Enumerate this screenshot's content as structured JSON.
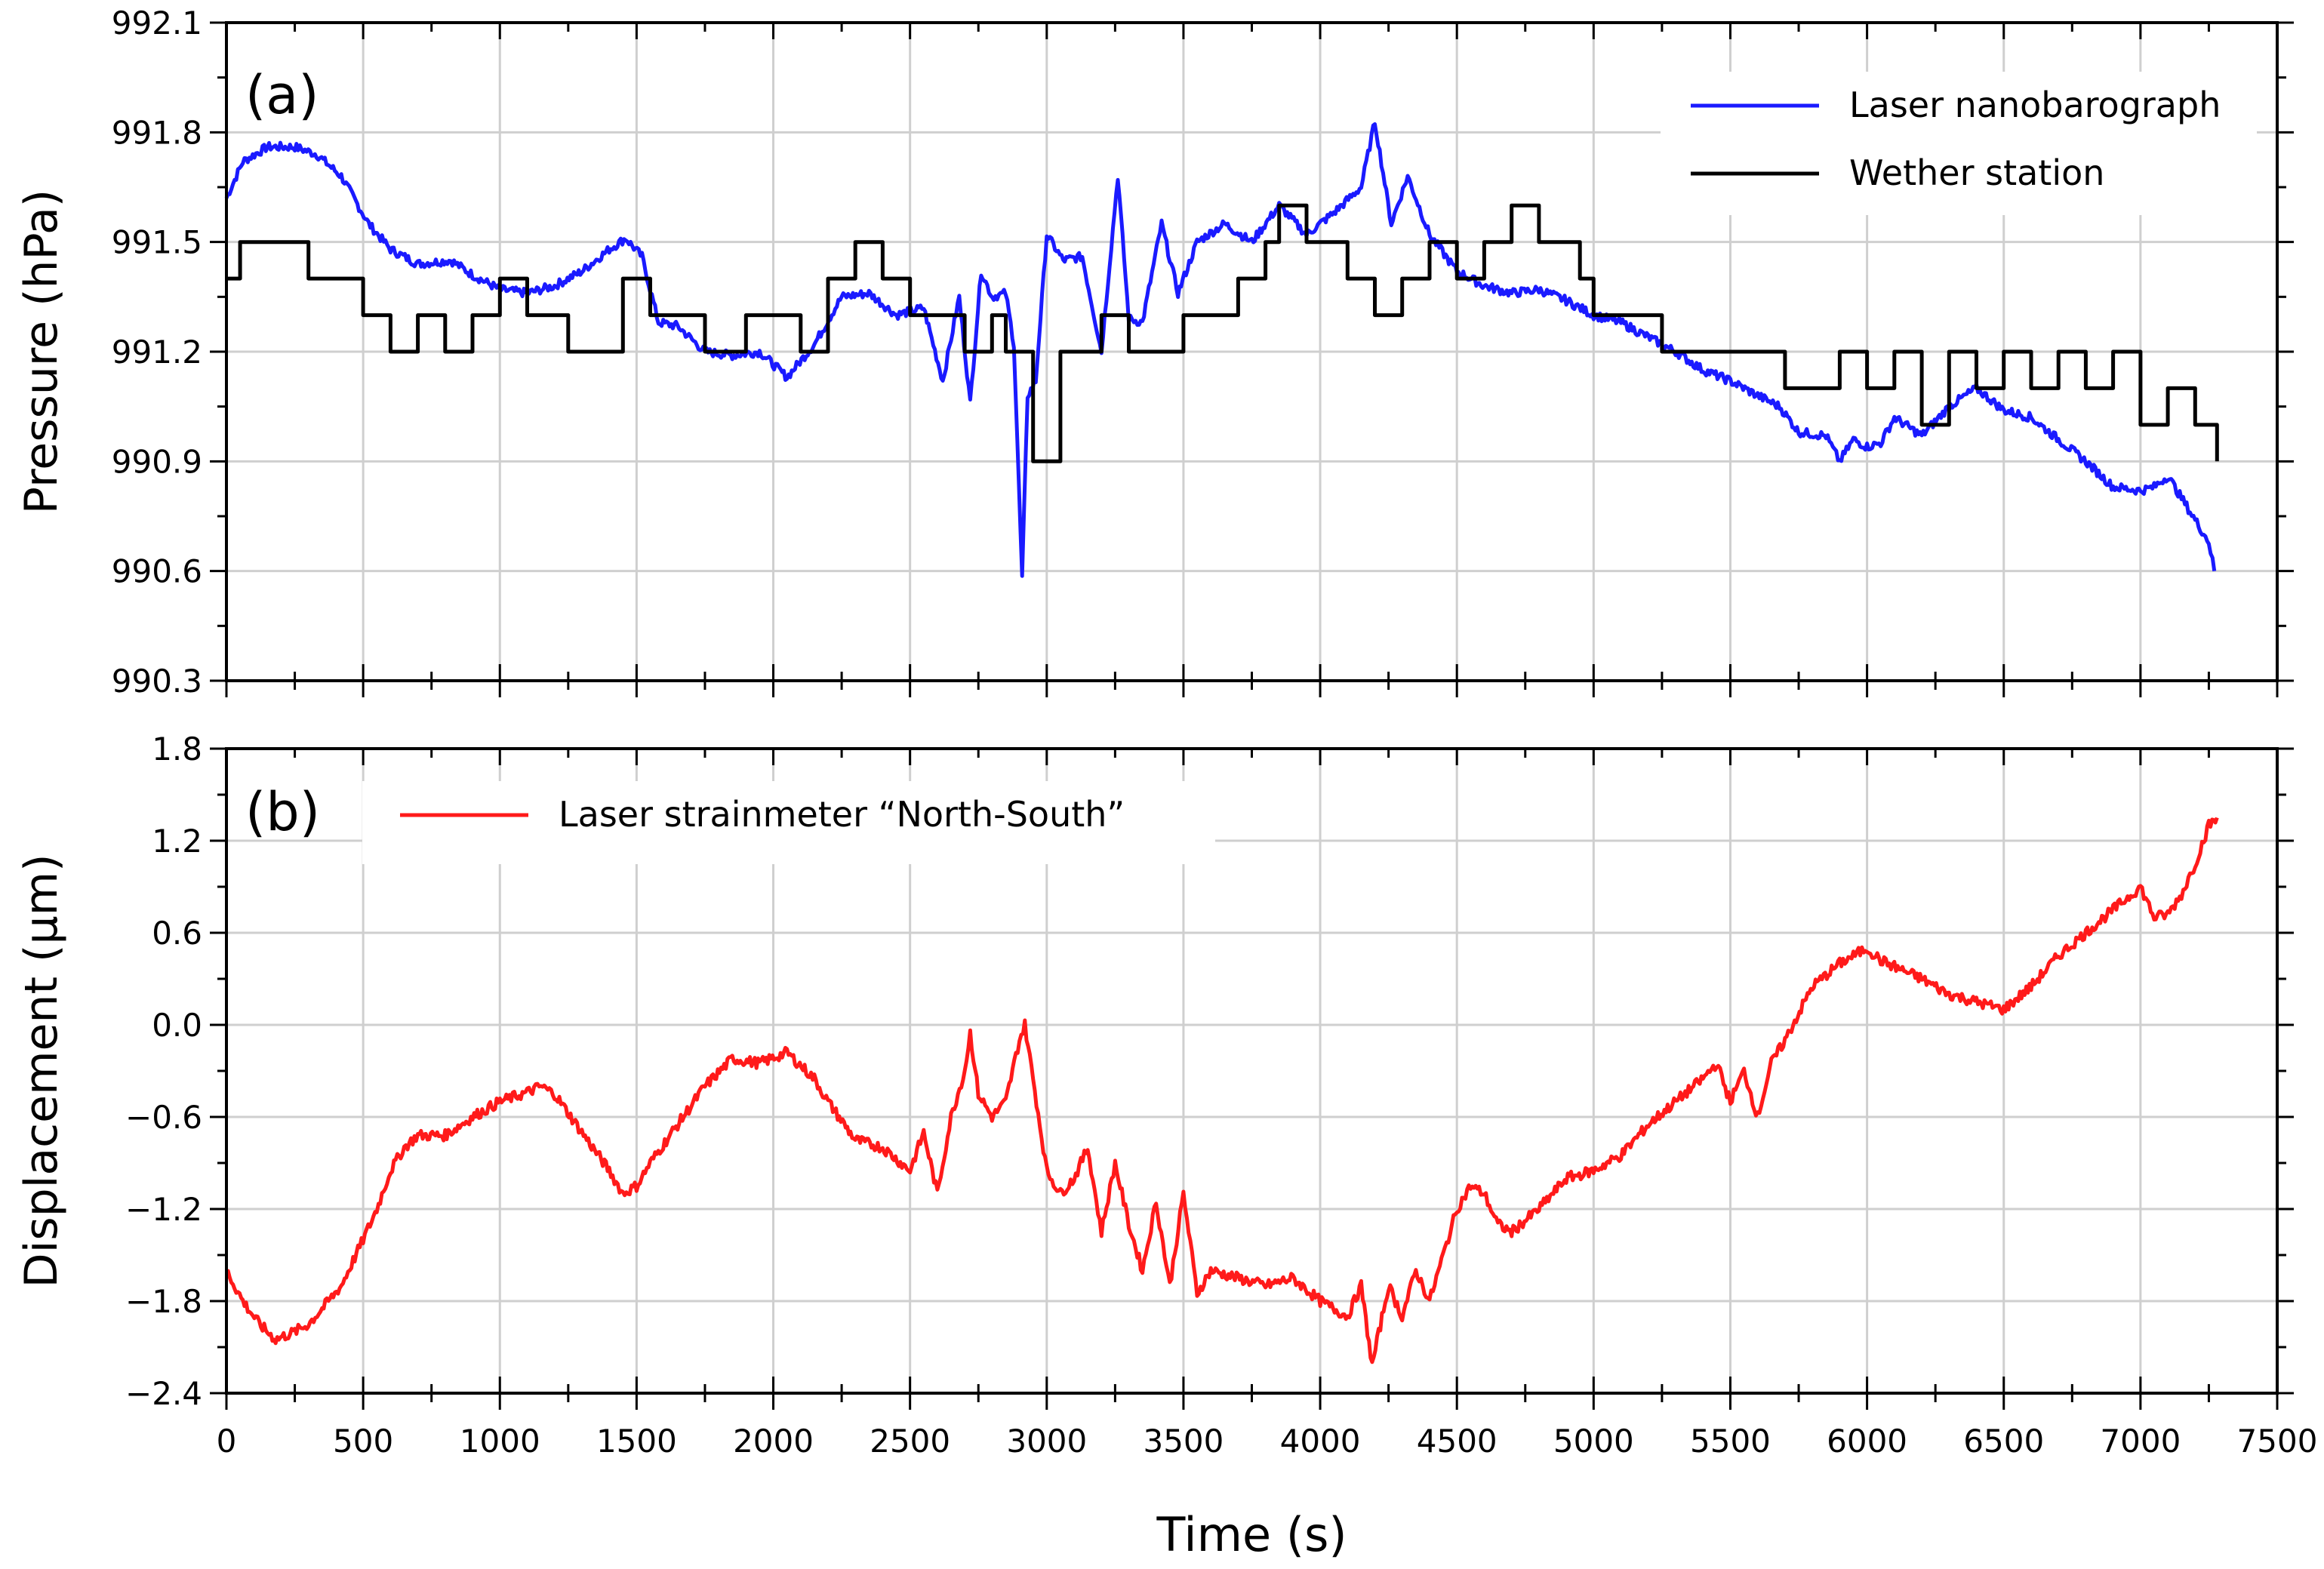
{
  "chart_data": [
    {
      "type": "line",
      "panel_label": "(a)",
      "ylabel": "Pressure (hPa)",
      "xlim": [
        0,
        7500
      ],
      "ylim": [
        990.3,
        992.1
      ],
      "xticks": [
        0,
        500,
        1000,
        1500,
        2000,
        2500,
        3000,
        3500,
        4000,
        4500,
        5000,
        5500,
        6000,
        6500,
        7000,
        7500
      ],
      "yticks": [
        "990.3",
        "990.6",
        "990.9",
        "991.2",
        "991.5",
        "991.8",
        "992.1"
      ],
      "grid": true,
      "legend_position": "top-right",
      "series": [
        {
          "name": "Laser nanobarograph",
          "color": "#1a1aff",
          "x": [
            0,
            60,
            150,
            250,
            330,
            420,
            520,
            600,
            700,
            820,
            900,
            1000,
            1100,
            1200,
            1300,
            1400,
            1460,
            1520,
            1580,
            1650,
            1750,
            1850,
            1950,
            2050,
            2150,
            2250,
            2350,
            2450,
            2550,
            2620,
            2680,
            2720,
            2760,
            2800,
            2850,
            2880,
            2910,
            2930,
            2960,
            3000,
            3060,
            3130,
            3200,
            3260,
            3300,
            3350,
            3420,
            3480,
            3550,
            3650,
            3750,
            3850,
            3950,
            4050,
            4150,
            4200,
            4260,
            4320,
            4400,
            4500,
            4600,
            4700,
            4800,
            4900,
            5000,
            5100,
            5200,
            5300,
            5400,
            5500,
            5600,
            5680,
            5750,
            5850,
            5900,
            5950,
            6000,
            6050,
            6100,
            6200,
            6300,
            6400,
            6500,
            6600,
            6700,
            6800,
            6900,
            7000,
            7050,
            7100,
            7150,
            7200,
            7250,
            7270
          ],
          "y": [
            991.62,
            991.72,
            991.76,
            991.76,
            991.74,
            991.68,
            991.55,
            991.48,
            991.44,
            991.45,
            991.41,
            991.37,
            991.36,
            991.38,
            991.42,
            991.48,
            991.51,
            991.46,
            991.28,
            991.27,
            991.2,
            991.19,
            991.2,
            991.13,
            991.22,
            991.35,
            991.36,
            991.3,
            991.32,
            991.12,
            991.35,
            991.06,
            991.42,
            991.35,
            991.36,
            991.22,
            990.58,
            991.08,
            991.12,
            991.52,
            991.45,
            991.46,
            991.2,
            991.68,
            991.29,
            991.28,
            991.55,
            991.36,
            991.5,
            991.55,
            991.5,
            991.6,
            991.52,
            991.58,
            991.65,
            991.83,
            991.55,
            991.68,
            991.52,
            991.42,
            991.38,
            991.36,
            991.37,
            991.34,
            991.3,
            991.28,
            991.24,
            991.2,
            991.15,
            991.12,
            991.08,
            991.05,
            990.98,
            990.97,
            990.9,
            990.96,
            990.94,
            990.95,
            991.02,
            990.97,
            991.05,
            991.1,
            991.04,
            991.02,
            990.96,
            990.9,
            990.83,
            990.82,
            990.83,
            990.86,
            990.8,
            990.74,
            990.68,
            990.6
          ]
        },
        {
          "name": "Wether station",
          "color": "#000000",
          "x": [
            0,
            50,
            300,
            500,
            600,
            700,
            800,
            900,
            1000,
            1100,
            1250,
            1450,
            1550,
            1650,
            1750,
            1900,
            2100,
            2200,
            2300,
            2400,
            2500,
            2600,
            2700,
            2800,
            2850,
            2950,
            3050,
            3200,
            3300,
            3500,
            3700,
            3800,
            3850,
            3950,
            4100,
            4200,
            4300,
            4400,
            4500,
            4600,
            4700,
            4800,
            4950,
            5000,
            5100,
            5250,
            5500,
            5700,
            5900,
            6000,
            6100,
            6200,
            6300,
            6400,
            6500,
            6600,
            6700,
            6800,
            6900,
            7000,
            7100,
            7200,
            7280
          ],
          "y": [
            991.4,
            991.5,
            991.4,
            991.3,
            991.2,
            991.3,
            991.2,
            991.3,
            991.4,
            991.3,
            991.2,
            991.4,
            991.3,
            991.3,
            991.2,
            991.3,
            991.2,
            991.4,
            991.5,
            991.4,
            991.3,
            991.3,
            991.2,
            991.3,
            991.2,
            990.9,
            991.2,
            991.3,
            991.2,
            991.3,
            991.4,
            991.5,
            991.6,
            991.5,
            991.4,
            991.3,
            991.4,
            991.5,
            991.4,
            991.5,
            991.6,
            991.5,
            991.4,
            991.3,
            991.3,
            991.2,
            991.2,
            991.1,
            991.2,
            991.1,
            991.2,
            991.0,
            991.2,
            991.1,
            991.2,
            991.1,
            991.2,
            991.1,
            991.2,
            991.0,
            991.1,
            991.0,
            990.9
          ]
        }
      ]
    },
    {
      "type": "line",
      "panel_label": "(b)",
      "ylabel": "Displacement (µm)",
      "xlabel": "Time (s)",
      "xlim": [
        0,
        7500
      ],
      "ylim": [
        -2.4,
        1.8
      ],
      "xticks": [
        0,
        500,
        1000,
        1500,
        2000,
        2500,
        3000,
        3500,
        4000,
        4500,
        5000,
        5500,
        6000,
        6500,
        7000,
        7500
      ],
      "yticks": [
        "−2.4",
        "−1.8",
        "−1.2",
        "−0.6",
        "0.0",
        "0.6",
        "1.2",
        "1.8"
      ],
      "grid": true,
      "legend_position": "top-left",
      "series": [
        {
          "name": "Laser strainmeter “North-South”",
          "color": "#ff1a1a",
          "x": [
            0,
            60,
            120,
            180,
            250,
            300,
            350,
            420,
            500,
            550,
            600,
            650,
            700,
            800,
            900,
            1000,
            1100,
            1150,
            1200,
            1300,
            1400,
            1450,
            1500,
            1550,
            1650,
            1750,
            1850,
            1950,
            2050,
            2150,
            2200,
            2300,
            2400,
            2500,
            2550,
            2600,
            2650,
            2700,
            2720,
            2750,
            2800,
            2850,
            2900,
            2920,
            2950,
            3000,
            3050,
            3100,
            3150,
            3200,
            3250,
            3300,
            3350,
            3400,
            3450,
            3500,
            3550,
            3600,
            3700,
            3800,
            3900,
            4000,
            4100,
            4150,
            4190,
            4250,
            4300,
            4350,
            4400,
            4450,
            4500,
            4550,
            4600,
            4650,
            4700,
            4800,
            4900,
            5000,
            5100,
            5200,
            5300,
            5400,
            5450,
            5500,
            5550,
            5600,
            5650,
            5700,
            5800,
            5900,
            5950,
            6000,
            6050,
            6100,
            6200,
            6300,
            6400,
            6500,
            6600,
            6700,
            6800,
            6900,
            7000,
            7050,
            7100,
            7150,
            7200,
            7250,
            7280
          ],
          "y": [
            -1.6,
            -1.8,
            -1.95,
            -2.05,
            -2.0,
            -1.95,
            -1.85,
            -1.7,
            -1.4,
            -1.2,
            -0.95,
            -0.8,
            -0.72,
            -0.72,
            -0.6,
            -0.5,
            -0.44,
            -0.4,
            -0.45,
            -0.7,
            -0.95,
            -1.1,
            -1.05,
            -0.9,
            -0.65,
            -0.4,
            -0.22,
            -0.25,
            -0.18,
            -0.35,
            -0.5,
            -0.75,
            -0.8,
            -0.95,
            -0.7,
            -1.1,
            -0.6,
            -0.3,
            -0.05,
            -0.45,
            -0.6,
            -0.5,
            -0.1,
            0.0,
            -0.35,
            -0.95,
            -1.1,
            -1.0,
            -0.8,
            -1.35,
            -0.9,
            -1.3,
            -1.6,
            -1.15,
            -1.7,
            -1.1,
            -1.75,
            -1.6,
            -1.65,
            -1.7,
            -1.65,
            -1.8,
            -1.9,
            -1.7,
            -2.22,
            -1.7,
            -1.9,
            -1.6,
            -1.8,
            -1.5,
            -1.2,
            -1.05,
            -1.1,
            -1.3,
            -1.35,
            -1.2,
            -1.0,
            -0.95,
            -0.85,
            -0.65,
            -0.5,
            -0.35,
            -0.25,
            -0.5,
            -0.3,
            -0.6,
            -0.25,
            -0.1,
            0.25,
            0.4,
            0.45,
            0.5,
            0.42,
            0.38,
            0.3,
            0.2,
            0.15,
            0.1,
            0.25,
            0.45,
            0.6,
            0.75,
            0.9,
            0.7,
            0.72,
            0.85,
            1.05,
            1.3,
            1.35
          ]
        }
      ]
    }
  ]
}
